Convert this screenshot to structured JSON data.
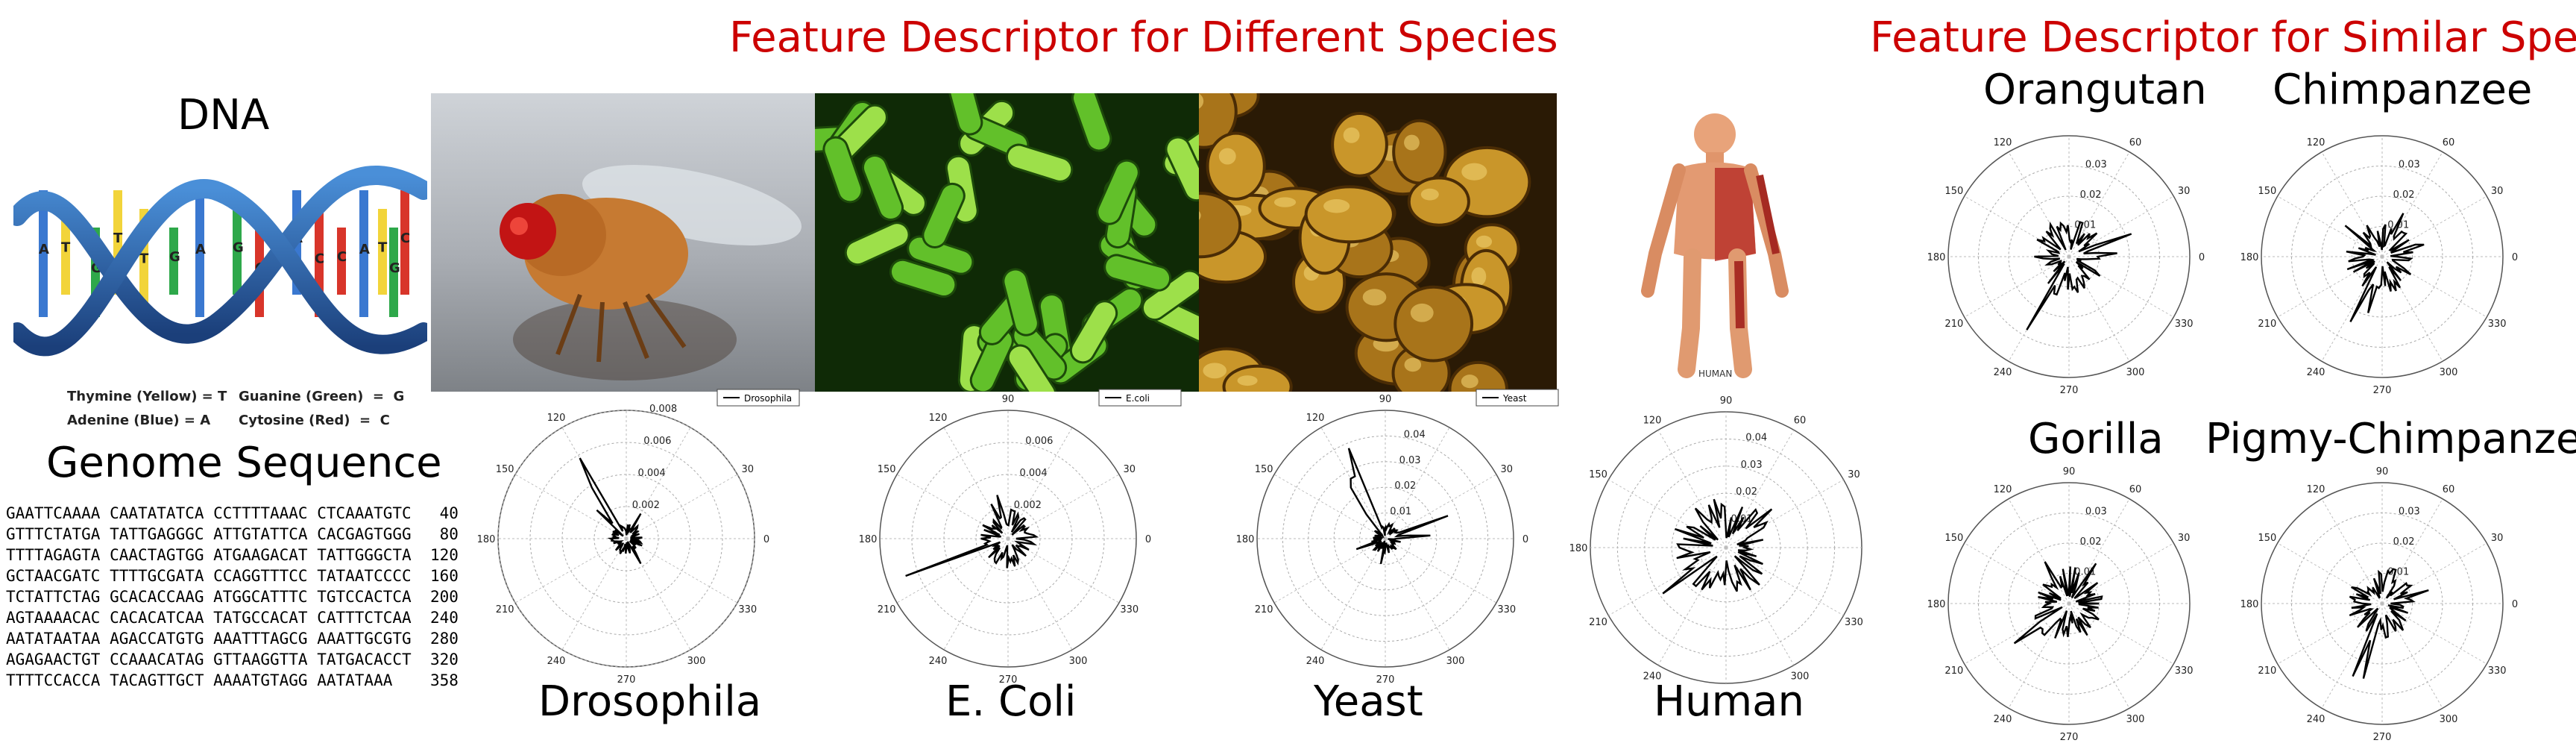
{
  "headings": {
    "different": "Feature Descriptor for Different Species",
    "similar": "Feature Descriptor for Similar Species",
    "dna": "DNA",
    "genome": "Genome Sequence",
    "color_accent": "#cc0000"
  },
  "dna_legend": {
    "thymine": "Thymine (Yellow) = T",
    "guanine": "Guanine (Green)  =  G",
    "adenine": "Adenine (Blue) = A",
    "cytosine": "Cytosine (Red)  =  C",
    "letters": [
      "A",
      "T",
      "G",
      "T",
      "T",
      "G",
      "A",
      "G",
      "C",
      "A",
      "C",
      "C",
      "A",
      "T",
      "G",
      "C"
    ]
  },
  "genome_rows": [
    "GAATTCAAAA CAATATATCA CCTTTTAAAC CTCAAATGTC   40",
    "GTTTCTATGA TATTGAGGGC ATTGTATTCA CACGAGTGGG   80",
    "TTTTAGAGTA CAACTAGTGG ATGAAGACAT TATTGGGCTA  120",
    "GCTAACGATC TTTTGCGATA CCAGGTTTCC TATAATCCCC  160",
    "TCTATTCTAG GCACACCAAG ATGGCATTTC TGTCCACTCA  200",
    "AGTAAAACAC CACACATCAA TATGCCACAT CATTTCTCAA  240",
    "AATATAATAA AGACCATGTG AAATTTAGCG AAATTGCGTG  280",
    "AGAGAACTGT CCAAACATAG GTTAAGGTTA TATGACACCT  320",
    "TTTTCCACCA TACAGTTGCT AAAATGTAGG AATATAAA    358"
  ],
  "species_labels": [
    "Drosophila",
    "E. Coli",
    "Yeast",
    "Human"
  ],
  "similar_labels": [
    "Orangutan",
    "Chimpanzee",
    "Gorilla",
    "Pigmy-Chimpanzee"
  ],
  "human_caption": "HUMAN",
  "chart_data": [
    {
      "type": "polar",
      "species": "Drosophila",
      "legend": "Drosophila",
      "rticks": [
        0.002,
        0.004,
        0.006,
        0.008
      ],
      "rlabels": [
        "0.002",
        "0.004",
        "0.006",
        "0.008"
      ],
      "rmax": 0.008,
      "angle_labels": [
        "0",
        "30",
        "60",
        "90",
        "120",
        "150",
        "180",
        "210",
        "240",
        "270",
        "300",
        "330"
      ],
      "shown_angles": [
        0,
        30,
        120,
        150,
        180,
        210,
        240,
        270,
        300,
        330
      ],
      "seed": 11,
      "base": 0.0007,
      "spikes": [
        [
          120,
          0.0058
        ],
        [
          125,
          0.0048
        ],
        [
          135,
          0.0032
        ],
        [
          60,
          0.0018
        ],
        [
          300,
          0.0018
        ],
        [
          250,
          0.0012
        ]
      ]
    },
    {
      "type": "polar",
      "species": "E. Coli",
      "legend": "E.coli",
      "rticks": [
        0.002,
        0.004,
        0.006
      ],
      "rlabels": [
        "0.002",
        "0.004",
        "0.006"
      ],
      "rmax": 0.008,
      "angle_labels": [
        "0",
        "30",
        "60",
        "90",
        "120",
        "150",
        "180",
        "210",
        "240",
        "270",
        "300",
        "330"
      ],
      "shown_angles": [
        0,
        30,
        90,
        120,
        150,
        180,
        210,
        240,
        270,
        300,
        330
      ],
      "seed": 23,
      "base": 0.0012,
      "spikes": [
        [
          200,
          0.0068
        ],
        [
          105,
          0.0035
        ],
        [
          115,
          0.003
        ],
        [
          75,
          0.0022
        ],
        [
          275,
          0.0018
        ],
        [
          35,
          0.0016
        ],
        [
          160,
          0.0016
        ]
      ]
    },
    {
      "type": "polar",
      "species": "Yeast",
      "legend": "Yeast",
      "rticks": [
        0.01,
        0.02,
        0.03,
        0.04
      ],
      "rlabels": [
        "0.01",
        "0.02",
        "0.03",
        "0.04"
      ],
      "rmax": 0.05,
      "angle_labels": [
        "0",
        "30",
        "60",
        "90",
        "120",
        "150",
        "180",
        "210",
        "240",
        "270",
        "300",
        "330"
      ],
      "shown_angles": [
        0,
        30,
        90,
        120,
        150,
        180,
        210,
        240,
        270,
        300,
        330
      ],
      "seed": 37,
      "base": 0.004,
      "spikes": [
        [
          118,
          0.045
        ],
        [
          112,
          0.038
        ],
        [
          125,
          0.03
        ],
        [
          20,
          0.026
        ],
        [
          5,
          0.022
        ],
        [
          200,
          0.012
        ],
        [
          260,
          0.01
        ]
      ]
    },
    {
      "type": "polar",
      "species": "Human",
      "legend": "",
      "rticks": [
        0.01,
        0.02,
        0.03,
        0.04
      ],
      "rlabels": [
        "0.01",
        "0.02",
        "0.03",
        "0.04"
      ],
      "rmax": 0.05,
      "angle_labels": [
        "0",
        "30",
        "60",
        "90",
        "120",
        "150",
        "180",
        "210",
        "240",
        "270",
        "300",
        "330"
      ],
      "shown_angles": [
        30,
        60,
        90,
        120,
        150,
        180,
        210,
        240,
        300,
        330
      ],
      "seed": 51,
      "base": 0.012,
      "spikes": [
        [
          215,
          0.036
        ],
        [
          230,
          0.03
        ],
        [
          40,
          0.022
        ],
        [
          95,
          0.02
        ],
        [
          160,
          0.02
        ],
        [
          300,
          0.018
        ]
      ]
    },
    {
      "type": "polar",
      "species": "Orangutan",
      "legend": "",
      "rticks": [
        0.01,
        0.02,
        0.03
      ],
      "rlabels": [
        "0.01",
        "0.02",
        "0.03"
      ],
      "rmax": 0.04,
      "angle_labels": [
        "0",
        "30",
        "60",
        "90",
        "120",
        "150",
        "180",
        "210",
        "240",
        "270",
        "300",
        "330"
      ],
      "shown_angles": [
        0,
        30,
        60,
        120,
        150,
        180,
        210,
        240,
        270,
        300,
        330
      ],
      "seed": 63,
      "base": 0.008,
      "spikes": [
        [
          240,
          0.028
        ],
        [
          250,
          0.022
        ],
        [
          70,
          0.02
        ],
        [
          20,
          0.022
        ],
        [
          5,
          0.02
        ],
        [
          150,
          0.016
        ]
      ]
    },
    {
      "type": "polar",
      "species": "Chimpanzee",
      "legend": "",
      "rticks": [
        0.01,
        0.02,
        0.03
      ],
      "rlabels": [
        "0.01",
        "0.02",
        "0.03"
      ],
      "rmax": 0.04,
      "angle_labels": [
        "0",
        "30",
        "60",
        "90",
        "120",
        "150",
        "180",
        "210",
        "240",
        "270",
        "300",
        "330"
      ],
      "shown_angles": [
        0,
        30,
        60,
        120,
        150,
        180,
        210,
        240,
        270,
        300,
        330
      ],
      "seed": 77,
      "base": 0.008,
      "spikes": [
        [
          245,
          0.03
        ],
        [
          255,
          0.024
        ],
        [
          65,
          0.02
        ],
        [
          15,
          0.018
        ],
        [
          140,
          0.016
        ]
      ]
    },
    {
      "type": "polar",
      "species": "Gorilla",
      "legend": "",
      "rticks": [
        0.01,
        0.02,
        0.03
      ],
      "rlabels": [
        "0.01",
        "0.02",
        "0.03"
      ],
      "rmax": 0.04,
      "angle_labels": [
        "0",
        "30",
        "60",
        "90",
        "120",
        "150",
        "180",
        "210",
        "240",
        "270",
        "300",
        "330"
      ],
      "shown_angles": [
        30,
        60,
        90,
        120,
        150,
        180,
        210,
        240,
        270,
        300,
        330
      ],
      "seed": 89,
      "base": 0.008,
      "spikes": [
        [
          215,
          0.028
        ],
        [
          230,
          0.022
        ],
        [
          55,
          0.02
        ],
        [
          120,
          0.016
        ],
        [
          10,
          0.018
        ]
      ]
    },
    {
      "type": "polar",
      "species": "Pigmy-Chimpanzee",
      "legend": "",
      "rticks": [
        0.01,
        0.02,
        0.03
      ],
      "rlabels": [
        "0.01",
        "0.02",
        "0.03"
      ],
      "rmax": 0.04,
      "angle_labels": [
        "0",
        "30",
        "60",
        "90",
        "120",
        "150",
        "180",
        "210",
        "240",
        "270",
        "300",
        "330"
      ],
      "shown_angles": [
        0,
        30,
        60,
        90,
        120,
        150,
        180,
        210,
        240,
        270,
        300,
        330
      ],
      "seed": 97,
      "base": 0.008,
      "spikes": [
        [
          255,
          0.032
        ],
        [
          248,
          0.026
        ],
        [
          70,
          0.02
        ],
        [
          15,
          0.02
        ],
        [
          150,
          0.016
        ]
      ]
    }
  ]
}
